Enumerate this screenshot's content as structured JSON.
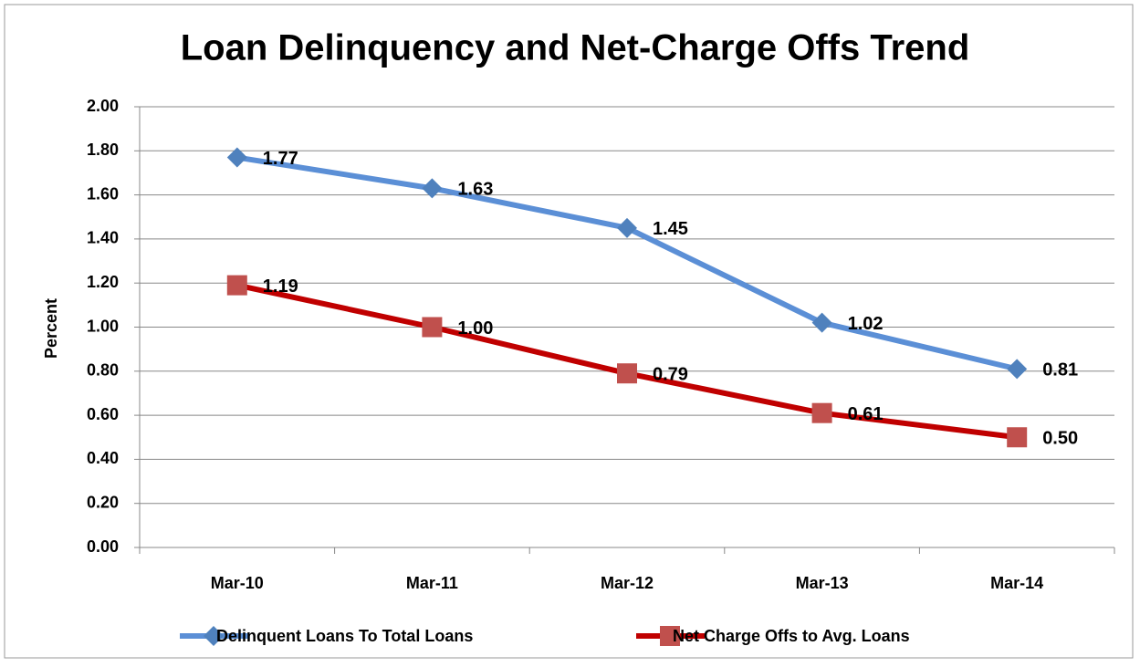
{
  "chart_data": {
    "type": "line",
    "title": "Loan Delinquency and Net-Charge Offs Trend",
    "y_label": "Percent",
    "categories": [
      "Mar-10",
      "Mar-11",
      "Mar-12",
      "Mar-13",
      "Mar-14"
    ],
    "series": [
      {
        "name": "Delinquent Loans To Total Loans",
        "color": "#5b8fd6",
        "marker_color": "#4f81bd",
        "marker": "diamond",
        "values": [
          1.77,
          1.63,
          1.45,
          1.02,
          0.81
        ],
        "value_labels": [
          "1.77",
          "1.63",
          "1.45",
          "1.02",
          "0.81"
        ]
      },
      {
        "name": "Net Charge Offs to Avg. Loans",
        "color": "#c00000",
        "marker_color": "#c0504d",
        "marker": "square",
        "values": [
          1.19,
          1.0,
          0.79,
          0.61,
          0.5
        ],
        "value_labels": [
          "1.19",
          "1.00",
          "0.79",
          "0.61",
          "0.50"
        ]
      }
    ],
    "ylim": [
      0,
      2
    ],
    "yticks": [
      {
        "value": 0,
        "label": "0.00"
      },
      {
        "value": 0.2,
        "label": "0.20"
      },
      {
        "value": 0.4,
        "label": "0.40"
      },
      {
        "value": 0.6,
        "label": "0.60"
      },
      {
        "value": 0.8,
        "label": "0.80"
      },
      {
        "value": 1,
        "label": "1.00"
      },
      {
        "value": 1.2,
        "label": "1.20"
      },
      {
        "value": 1.4,
        "label": "1.40"
      },
      {
        "value": 1.6,
        "label": "1.60"
      },
      {
        "value": 1.8,
        "label": "1.80"
      },
      {
        "value": 2,
        "label": "2.00"
      }
    ],
    "grid": true,
    "legend": "bottom"
  }
}
